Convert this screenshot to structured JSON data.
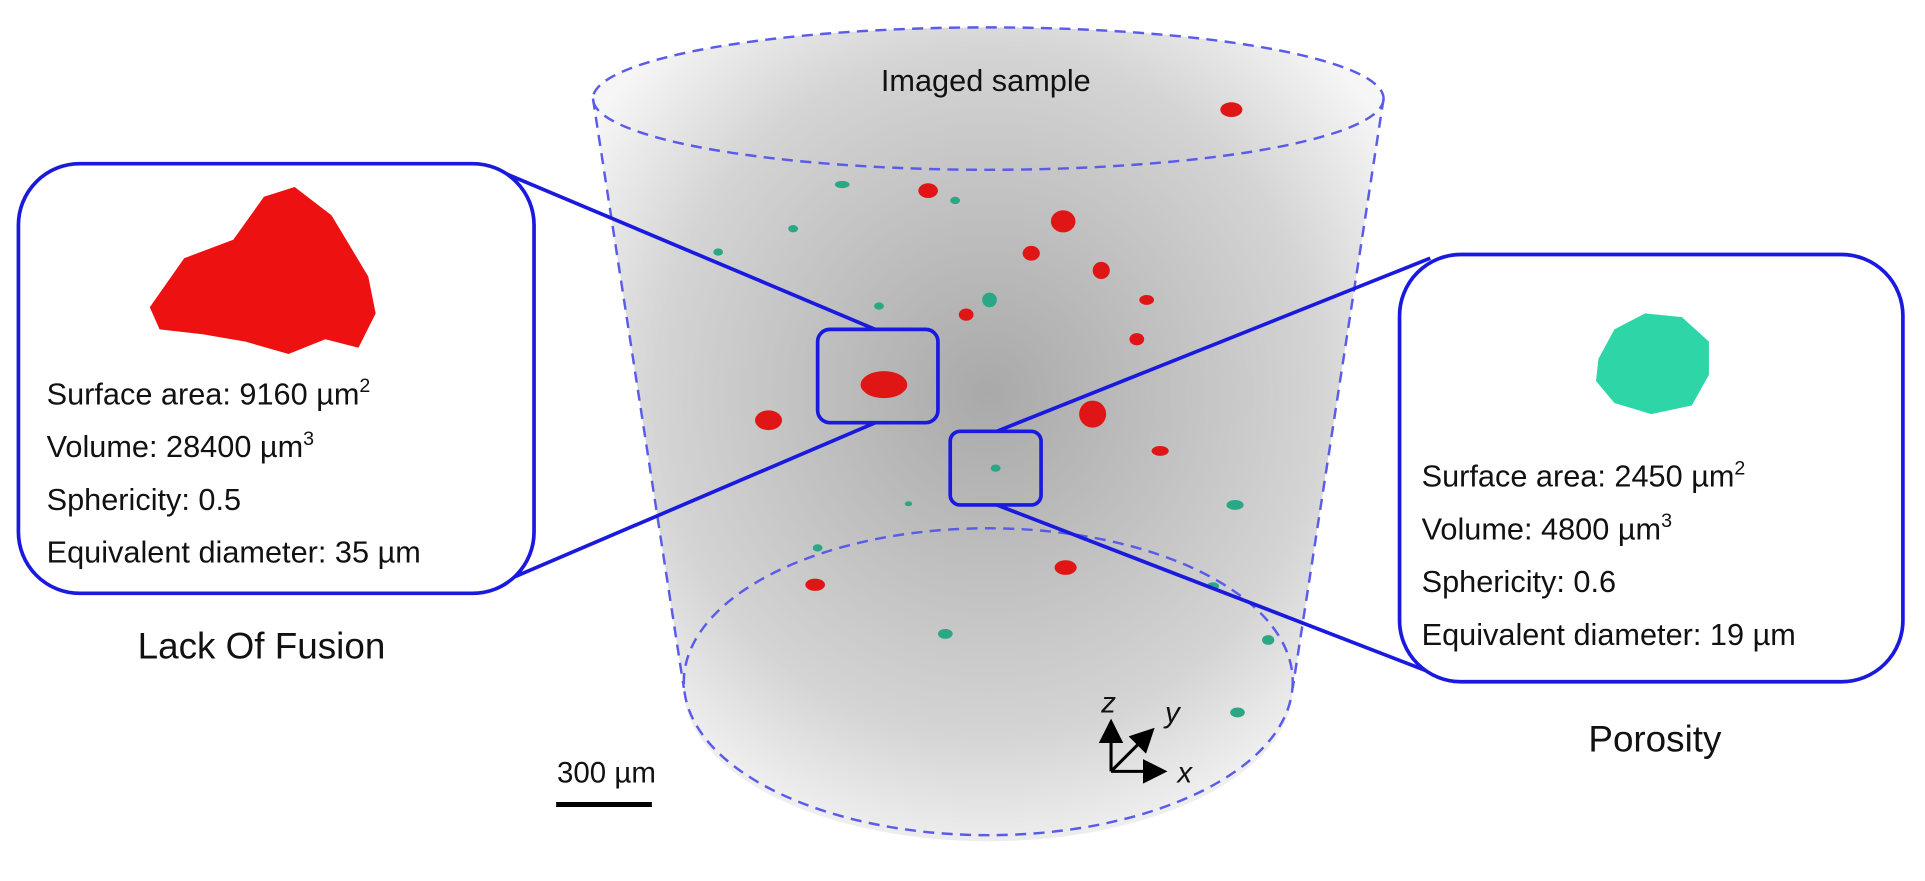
{
  "sample_label": "Imaged sample",
  "lack_of_fusion": {
    "title": "Lack Of Fusion",
    "lines": [
      {
        "text": "Surface area: 9160 µm",
        "sup": "2"
      },
      {
        "text": "Volume: 28400 µm",
        "sup": "3"
      },
      {
        "text": "Sphericity: 0.5"
      },
      {
        "text": "Equivalent diameter: 35 µm"
      }
    ]
  },
  "porosity": {
    "title": "Porosity",
    "lines": [
      {
        "text": "Surface area: 2450 µm",
        "sup": "2"
      },
      {
        "text": "Volume: 4800 µm",
        "sup": "3"
      },
      {
        "text": "Sphericity: 0.6"
      },
      {
        "text": "Equivalent diameter: 19 µm"
      }
    ]
  },
  "scale_bar": "300 µm",
  "axes": {
    "z": "z",
    "y": "y",
    "x": "x"
  }
}
